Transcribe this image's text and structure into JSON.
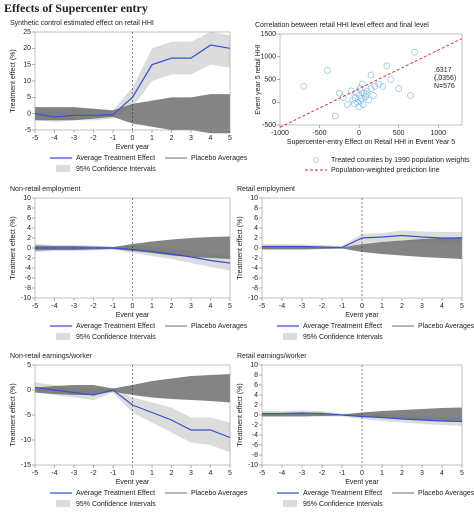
{
  "title": "Effects of Supercenter entry",
  "chart_data": [
    {
      "type": "line",
      "title": "Synthetic control estimated effect on retail HHI",
      "x_label": "Event year",
      "y_label": "Treatment effect (%)",
      "x": [
        -5,
        -4,
        -3,
        -2,
        -1,
        0,
        1,
        2,
        3,
        4,
        5
      ],
      "xlim": [
        -5,
        5
      ],
      "xticks": [
        -5,
        -4,
        -3,
        -2,
        -1,
        0,
        1,
        2,
        3,
        4,
        5
      ],
      "ylim": [
        -5,
        25
      ],
      "yticks": [
        -5,
        0,
        5,
        10,
        15,
        20,
        25
      ],
      "event_line": 0,
      "series": [
        {
          "name": "Average Treatment Effect",
          "color": "#3a4fd0",
          "values": [
            0,
            -1,
            -0.5,
            -0.5,
            -0.3,
            5,
            15,
            17,
            17,
            21,
            20
          ]
        },
        {
          "name": "Placebo Averages",
          "color": "#6e6e6e",
          "lower": [
            -2,
            -2,
            -2,
            -1.5,
            -1,
            -3,
            -4,
            -5,
            -5,
            -6,
            -6
          ],
          "upper": [
            2,
            2,
            2,
            1.5,
            1,
            3,
            4,
            5,
            5,
            6,
            6
          ]
        },
        {
          "name": "95% Confidence Intervals",
          "color": "#dcdcdc",
          "lower": [
            -2,
            -2.5,
            -2,
            -2,
            -1.5,
            2,
            10,
            12,
            12,
            15,
            14
          ],
          "upper": [
            2,
            1,
            1.5,
            1.5,
            1,
            8,
            20,
            22,
            22,
            25,
            24
          ]
        }
      ]
    },
    {
      "type": "scatter",
      "title": "Correlation between retail HHI level effect and final level",
      "x_label": "Supercenter-entry Effect on Retail HHI in Event Year 5",
      "y_label": "Event year 5 retail HHI",
      "xlim": [
        -1000,
        1300
      ],
      "xticks": [
        -1000,
        -500,
        0,
        500,
        1000
      ],
      "ylim": [
        -500,
        1500
      ],
      "yticks": [
        -500,
        0,
        500,
        1000,
        1500
      ],
      "annotation": [
        ".6317",
        "(.0356)",
        "N=576"
      ],
      "series": [
        {
          "name": "Treated counties by 1990 population weights",
          "color": "#7fb8e0",
          "x": [
            -50,
            0,
            30,
            -20,
            60,
            100,
            -80,
            10,
            150,
            200,
            -150,
            50,
            80,
            -30,
            120,
            0,
            250,
            300,
            -200,
            -100,
            40,
            20,
            -60,
            90,
            180,
            400,
            700,
            1000,
            -300,
            350,
            -700,
            -400,
            500,
            650,
            -250,
            150
          ],
          "values": [
            100,
            150,
            80,
            0,
            200,
            250,
            50,
            300,
            300,
            350,
            -50,
            -50,
            120,
            200,
            50,
            -100,
            400,
            350,
            100,
            250,
            400,
            30,
            -30,
            180,
            150,
            500,
            1100,
            550,
            -300,
            800,
            350,
            700,
            300,
            150,
            200,
            600
          ]
        },
        {
          "name": "Population-weighted prediction line",
          "color": "#d62728",
          "x": [
            -1000,
            1300
          ],
          "values": [
            -550,
            1400
          ]
        }
      ]
    },
    {
      "type": "line",
      "title": "Non-retail employment",
      "x_label": "Event year",
      "y_label": "Treatment effect (%)",
      "x": [
        -5,
        -4,
        -3,
        -2,
        -1,
        0,
        1,
        2,
        3,
        4,
        5
      ],
      "xlim": [
        -5,
        5
      ],
      "xticks": [
        -5,
        -4,
        -3,
        -2,
        -1,
        0,
        1,
        2,
        3,
        4,
        5
      ],
      "ylim": [
        -10,
        10
      ],
      "yticks": [
        -10,
        -8,
        -6,
        -4,
        -2,
        0,
        2,
        4,
        6,
        8,
        10
      ],
      "event_line": 0,
      "series": [
        {
          "name": "Average Treatment Effect",
          "color": "#3a4fd0",
          "values": [
            0,
            0,
            0,
            0,
            0,
            -0.3,
            -0.7,
            -1.2,
            -1.8,
            -2.5,
            -3
          ]
        },
        {
          "name": "Placebo Averages",
          "color": "#6e6e6e",
          "lower": [
            -0.5,
            -0.4,
            -0.4,
            -0.3,
            -0.2,
            -0.6,
            -1,
            -1.5,
            -1.8,
            -2,
            -2.2
          ],
          "upper": [
            0.5,
            0.4,
            0.4,
            0.3,
            0.2,
            0.8,
            1.3,
            1.7,
            2,
            2.2,
            2.3
          ]
        },
        {
          "name": "95% Confidence Intervals",
          "color": "#dcdcdc",
          "lower": [
            -0.8,
            -0.6,
            -0.6,
            -0.5,
            -0.3,
            -1,
            -1.6,
            -2.2,
            -3,
            -3.8,
            -4.5
          ],
          "upper": [
            0.8,
            0.6,
            0.6,
            0.5,
            0.3,
            0.4,
            0.2,
            -0.2,
            -0.6,
            -1.2,
            -1.5
          ]
        }
      ]
    },
    {
      "type": "line",
      "title": "Retail employment",
      "x_label": "Event year",
      "y_label": "Treatment effect (%)",
      "x": [
        -5,
        -4,
        -3,
        -2,
        -1,
        0,
        1,
        2,
        3,
        4,
        5
      ],
      "xlim": [
        -5,
        5
      ],
      "xticks": [
        -5,
        -4,
        -3,
        -2,
        -1,
        0,
        1,
        2,
        3,
        4,
        5
      ],
      "ylim": [
        -10,
        10
      ],
      "yticks": [
        -10,
        -8,
        -6,
        -4,
        -2,
        0,
        2,
        4,
        6,
        8,
        10
      ],
      "event_line": 0,
      "series": [
        {
          "name": "Average Treatment Effect",
          "color": "#3a4fd0",
          "values": [
            0.3,
            0.3,
            0.3,
            0.2,
            0.1,
            2,
            2.2,
            2.5,
            2.2,
            2,
            2
          ]
        },
        {
          "name": "Placebo Averages",
          "color": "#6e6e6e",
          "lower": [
            -0.3,
            -0.3,
            -0.3,
            -0.2,
            -0.1,
            -0.8,
            -1.2,
            -1.5,
            -1.8,
            -2,
            -2.2
          ],
          "upper": [
            0.3,
            0.3,
            0.3,
            0.2,
            0.1,
            0.8,
            1.2,
            1.5,
            1.8,
            2,
            2.2
          ]
        },
        {
          "name": "95% Confidence Intervals",
          "color": "#dcdcdc",
          "lower": [
            -0.3,
            -0.2,
            -0.2,
            -0.2,
            -0.2,
            1,
            1.2,
            1.3,
            1,
            0.8,
            0.7
          ],
          "upper": [
            0.8,
            0.8,
            0.7,
            0.6,
            0.4,
            2.8,
            3,
            3.5,
            3.3,
            3.2,
            3.2
          ]
        }
      ]
    },
    {
      "type": "line",
      "title": "Non-retail earnings/worker",
      "x_label": "Event year",
      "y_label": "Treatment effect (%)",
      "x": [
        -5,
        -4,
        -3,
        -2,
        -1,
        0,
        1,
        2,
        3,
        4,
        5
      ],
      "xlim": [
        -5,
        5
      ],
      "xticks": [
        -5,
        -4,
        -3,
        -2,
        -1,
        0,
        1,
        2,
        3,
        4,
        5
      ],
      "ylim": [
        -15,
        5
      ],
      "yticks": [
        -15,
        -10,
        -5,
        0,
        5
      ],
      "event_line": 0,
      "series": [
        {
          "name": "Average Treatment Effect",
          "color": "#3a4fd0",
          "values": [
            0.5,
            0,
            -0.5,
            -1,
            0,
            -3,
            -4.5,
            -6,
            -8,
            -8,
            -9.5
          ]
        },
        {
          "name": "Placebo Averages",
          "color": "#6e6e6e",
          "lower": [
            -0.5,
            -0.8,
            -1,
            -1,
            -0.3,
            -1,
            -1.5,
            -1.8,
            -2,
            -2.2,
            -2.5
          ],
          "upper": [
            0.5,
            0.8,
            1,
            1,
            0.3,
            1,
            1.8,
            2.3,
            2.8,
            3,
            3.2
          ]
        },
        {
          "name": "95% Confidence Intervals",
          "color": "#dcdcdc",
          "lower": [
            -0.5,
            -1,
            -1.5,
            -2,
            -0.5,
            -4.5,
            -6.5,
            -8.5,
            -10.5,
            -11,
            -12.5
          ],
          "upper": [
            1.5,
            1,
            0.5,
            0,
            0.5,
            -1.5,
            -2.5,
            -3.5,
            -5.5,
            -5.5,
            -6.5
          ]
        }
      ]
    },
    {
      "type": "line",
      "title": "Retail earnings/worker",
      "x_label": "Event year",
      "y_label": "Treatment effect (%)",
      "x": [
        -5,
        -4,
        -3,
        -2,
        -1,
        0,
        1,
        2,
        3,
        4,
        5
      ],
      "xlim": [
        -5,
        5
      ],
      "xticks": [
        -5,
        -4,
        -3,
        -2,
        -1,
        0,
        1,
        2,
        3,
        4,
        5
      ],
      "ylim": [
        -10,
        10
      ],
      "yticks": [
        -10,
        -8,
        -6,
        -4,
        -2,
        0,
        2,
        4,
        6,
        8,
        10
      ],
      "event_line": 0,
      "series": [
        {
          "name": "Average Treatment Effect",
          "color": "#3a4fd0",
          "values": [
            0.3,
            0.3,
            0.4,
            0.3,
            0,
            -0.3,
            -0.5,
            -0.8,
            -1,
            -1.2,
            -1.3
          ]
        },
        {
          "name": "Placebo Averages",
          "color": "#6e6e6e",
          "lower": [
            -0.3,
            -0.3,
            -0.3,
            -0.2,
            -0.1,
            -0.4,
            -0.6,
            -0.8,
            -1,
            -1.1,
            -1.2
          ],
          "upper": [
            0.3,
            0.3,
            0.3,
            0.2,
            0.1,
            0.5,
            0.8,
            1,
            1.2,
            1.4,
            1.5
          ]
        },
        {
          "name": "95% Confidence Intervals",
          "color": "#dcdcdc",
          "lower": [
            -0.3,
            -0.3,
            -0.2,
            -0.3,
            -0.3,
            -0.8,
            -1.2,
            -1.5,
            -1.8,
            -2,
            -2.2
          ],
          "upper": [
            0.8,
            0.8,
            0.9,
            0.8,
            0.3,
            0.2,
            0.2,
            0,
            -0.2,
            -0.4,
            -0.5
          ]
        }
      ]
    }
  ]
}
